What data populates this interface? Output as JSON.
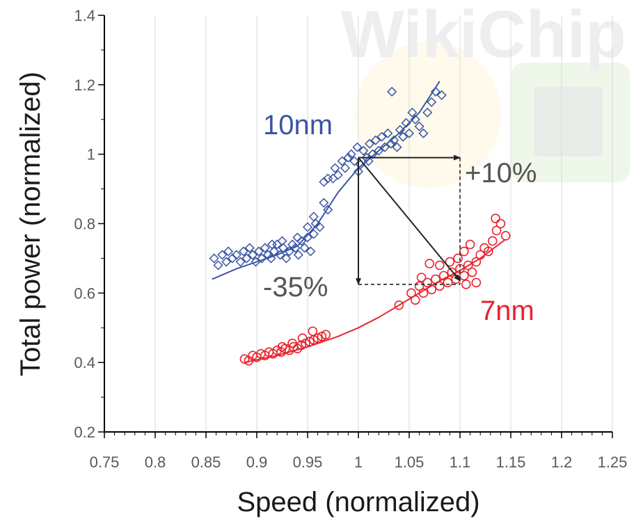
{
  "chart_data": {
    "type": "scatter",
    "title": "",
    "xlabel": "Speed (normalized)",
    "ylabel": "Total power (normalized)",
    "xlim": [
      0.75,
      1.25
    ],
    "ylim": [
      0.2,
      1.4
    ],
    "x_ticks": [
      0.75,
      0.8,
      0.85,
      0.9,
      0.95,
      1,
      1.05,
      1.1,
      1.15,
      1.2,
      1.25
    ],
    "x_tick_labels": [
      "0.75",
      "0.8",
      "0.85",
      "0.9",
      "0.95",
      "1",
      "1.05",
      "1.1",
      "1.15",
      "1.2",
      "1.25"
    ],
    "y_ticks": [
      0.2,
      0.4,
      0.6,
      0.8,
      1.0,
      1.2,
      1.4
    ],
    "y_tick_labels": [
      "0.2",
      "0.4",
      "0.6",
      "0.8",
      "1",
      "1.2",
      "1.4"
    ],
    "grid": "vertical",
    "watermark": "WikiChip",
    "series": [
      {
        "name": "10nm",
        "marker": "diamond",
        "color": "#3A55A4",
        "points": [
          [
            0.858,
            0.7
          ],
          [
            0.862,
            0.68
          ],
          [
            0.866,
            0.71
          ],
          [
            0.87,
            0.69
          ],
          [
            0.872,
            0.72
          ],
          [
            0.876,
            0.7
          ],
          [
            0.88,
            0.71
          ],
          [
            0.884,
            0.69
          ],
          [
            0.887,
            0.72
          ],
          [
            0.89,
            0.7
          ],
          [
            0.893,
            0.73
          ],
          [
            0.896,
            0.71
          ],
          [
            0.899,
            0.69
          ],
          [
            0.902,
            0.72
          ],
          [
            0.905,
            0.7
          ],
          [
            0.908,
            0.73
          ],
          [
            0.911,
            0.71
          ],
          [
            0.914,
            0.7
          ],
          [
            0.917,
            0.72
          ],
          [
            0.92,
            0.74
          ],
          [
            0.923,
            0.71
          ],
          [
            0.926,
            0.73
          ],
          [
            0.929,
            0.7
          ],
          [
            0.932,
            0.72
          ],
          [
            0.935,
            0.74
          ],
          [
            0.938,
            0.73
          ],
          [
            0.941,
            0.71
          ],
          [
            0.944,
            0.75
          ],
          [
            0.947,
            0.73
          ],
          [
            0.95,
            0.76
          ],
          [
            0.953,
            0.72
          ],
          [
            0.956,
            0.77
          ],
          [
            0.958,
            0.8
          ],
          [
            0.962,
            0.79
          ],
          [
            0.966,
            0.86
          ],
          [
            0.97,
            0.84
          ],
          [
            0.956,
            0.82
          ],
          [
            0.95,
            0.79
          ],
          [
            0.966,
            0.92
          ],
          [
            0.97,
            0.93
          ],
          [
            0.977,
            0.96
          ],
          [
            0.98,
            0.94
          ],
          [
            0.984,
            0.98
          ],
          [
            0.987,
            0.96
          ],
          [
            0.99,
            0.99
          ],
          [
            0.993,
            1.0
          ],
          [
            0.996,
            0.98
          ],
          [
            0.999,
            1.02
          ],
          [
            1.002,
            0.97
          ],
          [
            1.005,
            1.01
          ],
          [
            1.008,
            0.99
          ],
          [
            1.011,
            1.03
          ],
          [
            1.014,
            1.0
          ],
          [
            1.017,
            1.04
          ],
          [
            1.02,
            1.01
          ],
          [
            1.023,
            1.05
          ],
          [
            1.026,
            1.02
          ],
          [
            1.029,
            1.06
          ],
          [
            1.032,
            1.03
          ],
          [
            1.035,
            1.04
          ],
          [
            1.038,
            1.02
          ],
          [
            1.041,
            1.07
          ],
          [
            1.044,
            1.05
          ],
          [
            1.047,
            1.09
          ],
          [
            1.05,
            1.06
          ],
          [
            1.053,
            1.12
          ],
          [
            1.056,
            1.1
          ],
          [
            1.06,
            1.08
          ],
          [
            1.064,
            1.06
          ],
          [
            1.068,
            1.12
          ],
          [
            1.072,
            1.15
          ],
          [
            1.076,
            1.18
          ],
          [
            1.082,
            1.17
          ],
          [
            1.033,
            1.18
          ],
          [
            1.0,
            0.95
          ],
          [
            1.01,
            0.98
          ],
          [
            0.975,
            0.93
          ],
          [
            0.94,
            0.76
          ],
          [
            0.925,
            0.75
          ],
          [
            0.915,
            0.74
          ]
        ],
        "trend": [
          [
            0.856,
            0.64
          ],
          [
            0.88,
            0.67
          ],
          [
            0.9,
            0.69
          ],
          [
            0.92,
            0.71
          ],
          [
            0.94,
            0.735
          ],
          [
            0.96,
            0.8
          ],
          [
            0.98,
            0.89
          ],
          [
            1.0,
            0.96
          ],
          [
            1.02,
            1.01
          ],
          [
            1.04,
            1.06
          ],
          [
            1.06,
            1.12
          ],
          [
            1.08,
            1.21
          ]
        ]
      },
      {
        "name": "7nm",
        "marker": "circle",
        "color": "#E8222C",
        "points": [
          [
            0.888,
            0.41
          ],
          [
            0.892,
            0.405
          ],
          [
            0.896,
            0.42
          ],
          [
            0.9,
            0.415
          ],
          [
            0.904,
            0.425
          ],
          [
            0.908,
            0.42
          ],
          [
            0.912,
            0.43
          ],
          [
            0.916,
            0.425
          ],
          [
            0.92,
            0.435
          ],
          [
            0.924,
            0.43
          ],
          [
            0.928,
            0.44
          ],
          [
            0.932,
            0.435
          ],
          [
            0.936,
            0.445
          ],
          [
            0.94,
            0.44
          ],
          [
            0.944,
            0.45
          ],
          [
            0.948,
            0.455
          ],
          [
            0.952,
            0.46
          ],
          [
            0.956,
            0.465
          ],
          [
            0.96,
            0.47
          ],
          [
            0.964,
            0.475
          ],
          [
            0.968,
            0.48
          ],
          [
            0.955,
            0.49
          ],
          [
            0.945,
            0.47
          ],
          [
            0.935,
            0.455
          ],
          [
            0.925,
            0.445
          ],
          [
            1.04,
            0.565
          ],
          [
            1.052,
            0.6
          ],
          [
            1.056,
            0.58
          ],
          [
            1.06,
            0.62
          ],
          [
            1.064,
            0.6
          ],
          [
            1.068,
            0.63
          ],
          [
            1.072,
            0.61
          ],
          [
            1.076,
            0.64
          ],
          [
            1.08,
            0.62
          ],
          [
            1.084,
            0.65
          ],
          [
            1.088,
            0.63
          ],
          [
            1.092,
            0.66
          ],
          [
            1.096,
            0.64
          ],
          [
            1.1,
            0.67
          ],
          [
            1.104,
            0.65
          ],
          [
            1.108,
            0.68
          ],
          [
            1.112,
            0.66
          ],
          [
            1.116,
            0.69
          ],
          [
            1.12,
            0.71
          ],
          [
            1.124,
            0.73
          ],
          [
            1.128,
            0.72
          ],
          [
            1.132,
            0.75
          ],
          [
            1.136,
            0.78
          ],
          [
            1.14,
            0.8
          ],
          [
            1.145,
            0.765
          ],
          [
            1.098,
            0.7
          ],
          [
            1.104,
            0.72
          ],
          [
            1.11,
            0.74
          ],
          [
            1.09,
            0.69
          ],
          [
            1.08,
            0.68
          ],
          [
            1.07,
            0.685
          ],
          [
            1.062,
            0.645
          ],
          [
            1.106,
            0.625
          ],
          [
            1.116,
            0.63
          ],
          [
            1.135,
            0.815
          ]
        ],
        "trend": [
          [
            0.888,
            0.4
          ],
          [
            0.92,
            0.42
          ],
          [
            0.95,
            0.445
          ],
          [
            0.98,
            0.475
          ],
          [
            1.0,
            0.5
          ],
          [
            1.02,
            0.53
          ],
          [
            1.04,
            0.565
          ],
          [
            1.06,
            0.6
          ],
          [
            1.08,
            0.635
          ],
          [
            1.1,
            0.665
          ],
          [
            1.12,
            0.7
          ],
          [
            1.145,
            0.755
          ]
        ]
      }
    ],
    "annotations": [
      {
        "type": "arrow",
        "from": [
          1.0,
          0.99
        ],
        "to": [
          1.1,
          0.99
        ],
        "style": "solid"
      },
      {
        "type": "arrow",
        "from": [
          1.0,
          0.99
        ],
        "to": [
          1.0,
          0.625
        ],
        "style": "solid"
      },
      {
        "type": "arrow",
        "from": [
          1.0,
          0.99
        ],
        "to": [
          1.1,
          0.635
        ],
        "style": "solid"
      },
      {
        "type": "line",
        "from": [
          1.1,
          0.99
        ],
        "to": [
          1.1,
          0.625
        ],
        "style": "dashed"
      },
      {
        "type": "line",
        "from": [
          1.0,
          0.625
        ],
        "to": [
          1.1,
          0.625
        ],
        "style": "dashed"
      }
    ],
    "annotation_labels": [
      "+10%",
      "-35%"
    ]
  }
}
